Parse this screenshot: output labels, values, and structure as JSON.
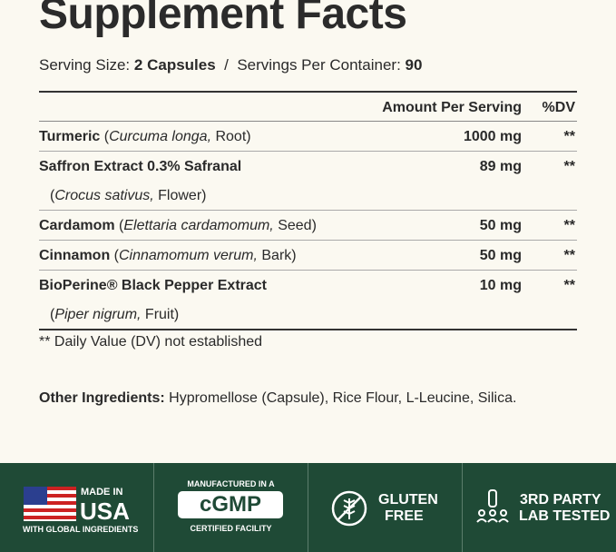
{
  "title": "Supplement Facts",
  "serving": {
    "size_label": "Serving Size:",
    "size_value": "2 Capsules",
    "separator": "/",
    "per_container_label": "Servings Per Container:",
    "per_container_value": "90"
  },
  "table": {
    "header": {
      "amount": "Amount Per Serving",
      "dv": "%DV"
    },
    "rows": [
      {
        "name": "Turmeric",
        "source": [
          {
            "text": "(",
            "italic": false
          },
          {
            "text": "Curcuma longa,",
            "italic": true
          },
          {
            "text": " Root)",
            "italic": false
          }
        ],
        "source_on_new_line": false,
        "amount": "1000 mg",
        "dv": "**"
      },
      {
        "name": "Saffron Extract 0.3% Safranal",
        "source": [
          {
            "text": "(",
            "italic": false
          },
          {
            "text": "Crocus sativus,",
            "italic": true
          },
          {
            "text": " Flower)",
            "italic": false
          }
        ],
        "source_on_new_line": true,
        "amount": "89 mg",
        "dv": "**"
      },
      {
        "name": "Cardamom",
        "source": [
          {
            "text": "(",
            "italic": false
          },
          {
            "text": "Elettaria cardamomum,",
            "italic": true
          },
          {
            "text": " Seed)",
            "italic": false
          }
        ],
        "source_on_new_line": false,
        "amount": "50 mg",
        "dv": "**"
      },
      {
        "name": "Cinnamon",
        "source": [
          {
            "text": "(",
            "italic": false
          },
          {
            "text": "Cinnamomum verum,",
            "italic": true
          },
          {
            "text": " Bark)",
            "italic": false
          }
        ],
        "source_on_new_line": false,
        "amount": "50 mg",
        "dv": "**"
      },
      {
        "name": "BioPerine® Black Pepper Extract",
        "source": [
          {
            "text": "(",
            "italic": false
          },
          {
            "text": "Piper nigrum,",
            "italic": true
          },
          {
            "text": " Fruit)",
            "italic": false
          }
        ],
        "source_on_new_line": true,
        "amount": "10 mg",
        "dv": "**"
      }
    ],
    "footnote": "** Daily Value (DV) not established"
  },
  "other_ingredients": {
    "label": "Other Ingredients:",
    "text": "Hypromellose (Capsule), Rice Flour, L-Leucine, Silica."
  },
  "badges": [
    {
      "top": "MADE IN",
      "main": "USA",
      "bottom": "WITH GLOBAL INGREDIENTS"
    },
    {
      "top": "MANUFACTURED IN A",
      "main": "cGMP",
      "bottom": "CERTIFIED FACILITY"
    },
    {
      "line1": "GLUTEN",
      "line2": "FREE"
    },
    {
      "line1": "3RD PARTY",
      "line2": "LAB TESTED"
    }
  ]
}
